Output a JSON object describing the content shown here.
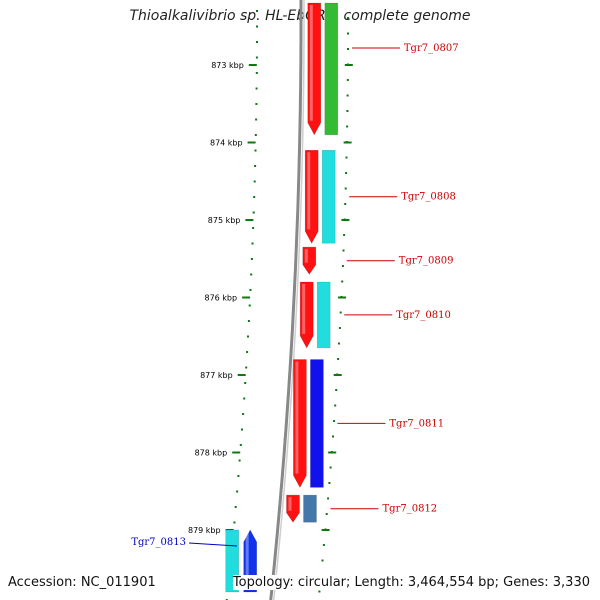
{
  "title": "Thioalkalivibrio sp. HL-EbGR7, complete genome",
  "accession": "Accession: NC_011901",
  "topology": "Topology: circular; Length: 3,464,554 bp; Genes: 3,330",
  "scale_labels": [
    {
      "kbp": 873,
      "label": "873 kbp"
    },
    {
      "kbp": 874,
      "label": "874 kbp"
    },
    {
      "kbp": 875,
      "label": "875 kbp"
    },
    {
      "kbp": 876,
      "label": "876 kbp"
    },
    {
      "kbp": 877,
      "label": "877 kbp"
    },
    {
      "kbp": 878,
      "label": "878 kbp"
    },
    {
      "kbp": 879,
      "label": "879 kbp"
    }
  ],
  "genes": [
    {
      "name": "Tgr7_0807",
      "strand": "forward",
      "start_kbp": 872.2,
      "end_kbp": 873.9,
      "category_color": "#33bb33",
      "label_color": "#cc0000"
    },
    {
      "name": "Tgr7_0808",
      "strand": "forward",
      "start_kbp": 874.1,
      "end_kbp": 875.3,
      "category_color": "#22dddd",
      "label_color": "#cc0000"
    },
    {
      "name": "Tgr7_0809",
      "strand": "forward",
      "start_kbp": 875.35,
      "end_kbp": 875.7,
      "category_color": "",
      "label_color": "#cc0000"
    },
    {
      "name": "Tgr7_0810",
      "strand": "forward",
      "start_kbp": 875.8,
      "end_kbp": 876.65,
      "category_color": "#22dddd",
      "label_color": "#cc0000"
    },
    {
      "name": "Tgr7_0811",
      "strand": "forward",
      "start_kbp": 876.8,
      "end_kbp": 878.45,
      "category_color": "#1111ee",
      "label_color": "#cc0000"
    },
    {
      "name": "Tgr7_0812",
      "strand": "forward",
      "start_kbp": 878.55,
      "end_kbp": 878.9,
      "category_color": "#4477aa",
      "label_color": "#cc0000"
    },
    {
      "name": "Tgr7_0813",
      "strand": "reverse",
      "start_kbp": 879.0,
      "end_kbp": 879.8,
      "category_color": "#22dddd",
      "label_color": "#0000cc"
    }
  ],
  "colors": {
    "forward_strand": "#ff1111",
    "reverse_strand": "#1133ee",
    "backbone": "#888888",
    "ticks": "#117711"
  }
}
